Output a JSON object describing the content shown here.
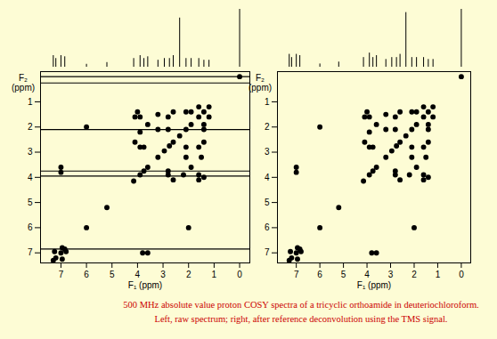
{
  "chart_data": [
    {
      "type": "scatter",
      "xlabel": "F₁ (ppm)",
      "ylabel": "F₂ (ppm)",
      "xlim": [
        7.8,
        -0.4
      ],
      "ylim": [
        -0.2,
        7.4
      ],
      "xticks": [
        7,
        6,
        5,
        4,
        3,
        2,
        1,
        0
      ],
      "yticks": [
        1,
        2,
        3,
        4,
        5,
        6,
        7
      ],
      "color": "#000000",
      "x": [
        7.0,
        7.0,
        7.25,
        6.95,
        6.0,
        4.1,
        4.1,
        3.9,
        3.9,
        3.75,
        3.6,
        3.2,
        3.2,
        2.8,
        2.8,
        2.6,
        2.1,
        1.9,
        1.6,
        3.9,
        4.0,
        3.6,
        3.8,
        6.95,
        6.8,
        2.0,
        2.6,
        1.6,
        2.2,
        1.6,
        2.8,
        1.9,
        2.1,
        1.5,
        1.6,
        2.1,
        1.4,
        1.4,
        1.4,
        1.2,
        2.8,
        1.4,
        7.3,
        7.2,
        7.0,
        6.85,
        6.0,
        5.2,
        4.15,
        3.9,
        3.75,
        3.6,
        3.2,
        2.95,
        2.75,
        2.6,
        2.35,
        2.1,
        1.9,
        1.6,
        1.4,
        1.2,
        0.0
      ],
      "y": [
        3.6,
        3.8,
        6.95,
        6.8,
        2.0,
        2.6,
        1.6,
        2.2,
        1.6,
        2.8,
        1.9,
        2.1,
        1.5,
        1.6,
        2.1,
        1.4,
        1.4,
        1.4,
        1.2,
        2.8,
        1.4,
        7.0,
        7.0,
        7.25,
        6.95,
        6.0,
        4.1,
        4.1,
        3.9,
        3.9,
        3.75,
        3.6,
        3.2,
        3.2,
        2.8,
        2.8,
        2.6,
        2.1,
        1.9,
        1.6,
        3.9,
        4.0,
        7.3,
        7.2,
        7.0,
        6.85,
        6.0,
        5.2,
        4.15,
        3.9,
        3.75,
        3.6,
        3.2,
        2.95,
        2.75,
        2.6,
        2.35,
        2.1,
        1.9,
        1.6,
        1.4,
        1.2,
        0.0
      ],
      "ridges": [
        0.0,
        0.25,
        2.1,
        3.75,
        3.95,
        6.85
      ],
      "spectrum": {
        "x": [
          7.3,
          7.2,
          7.0,
          6.85,
          6.0,
          5.2,
          4.15,
          3.9,
          3.75,
          3.6,
          3.2,
          2.95,
          2.75,
          2.6,
          2.35,
          2.1,
          1.9,
          1.6,
          1.4,
          1.2,
          0.0
        ],
        "values": [
          0.2,
          0.15,
          0.2,
          0.18,
          0.05,
          0.08,
          0.15,
          0.2,
          0.15,
          0.18,
          0.12,
          0.15,
          0.15,
          0.2,
          0.85,
          0.15,
          0.15,
          0.15,
          0.12,
          0.12,
          1.0
        ]
      }
    },
    {
      "type": "scatter",
      "xlabel": "F₁ (ppm)",
      "ylabel": "F₂ (ppm)",
      "xlim": [
        7.8,
        -0.4
      ],
      "ylim": [
        -0.2,
        7.4
      ],
      "xticks": [
        7,
        6,
        5,
        4,
        3,
        2,
        1,
        0
      ],
      "yticks": [
        1,
        2,
        3,
        4,
        5,
        6,
        7
      ],
      "color": "#000000",
      "x": [
        7.0,
        7.0,
        7.25,
        6.95,
        6.0,
        4.1,
        4.1,
        3.9,
        3.9,
        3.75,
        3.6,
        3.2,
        3.2,
        2.8,
        2.8,
        2.6,
        2.1,
        1.9,
        1.6,
        3.9,
        4.0,
        3.6,
        3.8,
        6.95,
        6.8,
        2.0,
        2.6,
        1.6,
        2.2,
        1.6,
        2.8,
        1.9,
        2.1,
        1.5,
        1.6,
        2.1,
        1.4,
        1.4,
        1.4,
        1.2,
        2.8,
        1.4,
        7.3,
        7.2,
        7.0,
        6.85,
        6.0,
        5.2,
        4.15,
        3.9,
        3.75,
        3.6,
        3.2,
        2.95,
        2.75,
        2.6,
        2.35,
        2.1,
        1.9,
        1.6,
        1.4,
        1.2,
        0.0
      ],
      "y": [
        3.6,
        3.8,
        6.95,
        6.8,
        2.0,
        2.6,
        1.6,
        2.2,
        1.6,
        2.8,
        1.9,
        2.1,
        1.5,
        1.6,
        2.1,
        1.4,
        1.4,
        1.4,
        1.2,
        2.8,
        1.4,
        7.0,
        7.0,
        7.25,
        6.95,
        6.0,
        4.1,
        4.1,
        3.9,
        3.9,
        3.75,
        3.6,
        3.2,
        3.2,
        2.8,
        2.8,
        2.6,
        2.1,
        1.9,
        1.6,
        3.9,
        4.0,
        7.3,
        7.2,
        7.0,
        6.85,
        6.0,
        5.2,
        4.15,
        3.9,
        3.75,
        3.6,
        3.2,
        2.95,
        2.75,
        2.6,
        2.35,
        2.1,
        1.9,
        1.6,
        1.4,
        1.2,
        0.0
      ],
      "spectrum": {
        "x": [
          7.3,
          7.2,
          7.0,
          6.85,
          6.0,
          5.2,
          4.15,
          3.9,
          3.75,
          3.6,
          3.2,
          2.95,
          2.75,
          2.6,
          2.35,
          2.1,
          1.9,
          1.6,
          1.4,
          1.2,
          0.0
        ],
        "values": [
          0.2,
          0.15,
          0.2,
          0.18,
          0.05,
          0.08,
          0.15,
          0.22,
          0.15,
          0.18,
          0.12,
          0.15,
          0.15,
          0.2,
          0.85,
          0.15,
          0.15,
          0.15,
          0.12,
          0.12,
          0.9
        ]
      }
    }
  ],
  "caption": [
    "500 MHz absolute value proton COSY spectra of a tricyclic orthoamide in deuteriochloroform.",
    "Left, raw spectrum;  right, after reference deconvolution using the TMS signal."
  ]
}
